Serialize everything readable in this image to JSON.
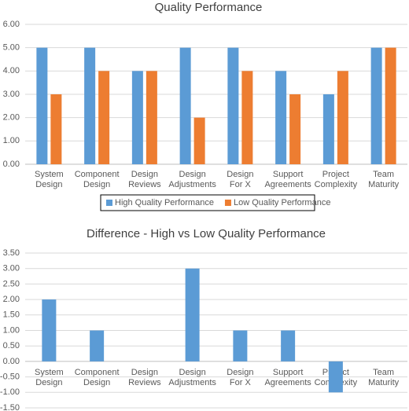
{
  "chart_data": [
    {
      "type": "bar",
      "title": "Quality Performance",
      "categories": [
        "System Design",
        "Component Design",
        "Design Reviews",
        "Design Adjustments",
        "Design For X",
        "Support Agreements",
        "Project Complexity",
        "Team Maturity"
      ],
      "series": [
        {
          "name": "High Quality Performance",
          "color": "#5b9bd5",
          "values": [
            5,
            5,
            4,
            5,
            5,
            4,
            3,
            5
          ]
        },
        {
          "name": "Low Quality Performance",
          "color": "#ed7d31",
          "values": [
            3,
            4,
            4,
            2,
            4,
            3,
            4,
            5
          ]
        }
      ],
      "ylim": [
        0,
        6
      ],
      "yticks": [
        {
          "value": 0,
          "label": "0.00"
        },
        {
          "value": 1,
          "label": "1.00"
        },
        {
          "value": 2,
          "label": "2.00"
        },
        {
          "value": 3,
          "label": "3.00"
        },
        {
          "value": 4,
          "label": "4.00"
        },
        {
          "value": 5,
          "label": "5.00"
        },
        {
          "value": 6,
          "label": "6.00"
        }
      ],
      "grid": true,
      "legend": "bottom"
    },
    {
      "type": "bar",
      "title": "Difference - High vs Low Quality Performance",
      "categories": [
        "System Design",
        "Component Design",
        "Design Reviews",
        "Design Adjustments",
        "Design For X",
        "Support Agreements",
        "Project Complexity",
        "Team Maturity"
      ],
      "values": [
        2,
        1,
        0,
        3,
        1,
        1,
        -1,
        0
      ],
      "color": "#5b9bd5",
      "ylim": [
        -1.5,
        3.5
      ],
      "yticks": [
        {
          "value": -1.5,
          "label": "-1.50"
        },
        {
          "value": -1,
          "label": "-1.00"
        },
        {
          "value": -0.5,
          "label": "-0.50"
        },
        {
          "value": 0,
          "label": "0.00"
        },
        {
          "value": 0.5,
          "label": "0.50"
        },
        {
          "value": 1,
          "label": "1.00"
        },
        {
          "value": 1.5,
          "label": "1.50"
        },
        {
          "value": 2,
          "label": "2.00"
        },
        {
          "value": 2.5,
          "label": "2.50"
        },
        {
          "value": 3,
          "label": "3.00"
        },
        {
          "value": 3.5,
          "label": "3.50"
        }
      ],
      "grid": true
    }
  ]
}
